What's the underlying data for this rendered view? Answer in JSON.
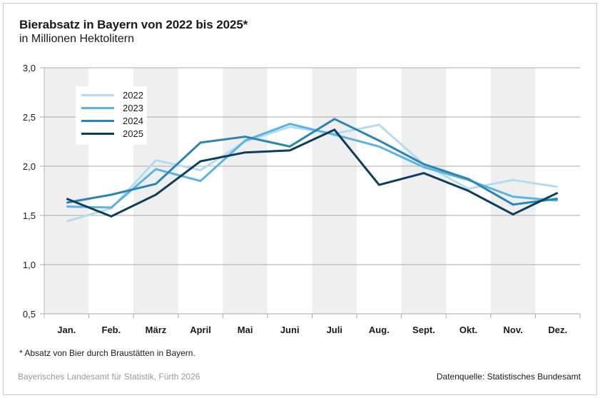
{
  "header": {
    "title": "Bierabsatz in Bayern von 2022 bis 2025*",
    "subtitle": "in Millionen Hektolitern"
  },
  "footer": {
    "footnote": "* Absatz von Bier durch Braustätten in Bayern.",
    "credit": "Bayerisches Landesamt für Statistik, Fürth 2026",
    "source": "Datenquelle: Statistisches Bundesamt"
  },
  "chart_data": {
    "type": "line",
    "title": "Bierabsatz in Bayern von 2022 bis 2025*",
    "subtitle": "in Millionen Hektolitern",
    "xlabel": "",
    "ylabel": "",
    "categories": [
      "Jan.",
      "Feb.",
      "März",
      "April",
      "Mai",
      "Juni",
      "Juli",
      "Aug.",
      "Sept.",
      "Okt.",
      "Nov.",
      "Dez."
    ],
    "ylim": [
      0.5,
      3.0
    ],
    "yticks": [
      0.5,
      1.0,
      1.5,
      2.0,
      2.5,
      3.0
    ],
    "ytick_labels": [
      "0,5",
      "1,0",
      "1,5",
      "2,0",
      "2,5",
      "3,0"
    ],
    "grid": "horizontal",
    "alternating_month_bands": true,
    "legend_position": "top-left",
    "series": [
      {
        "name": "2022",
        "color": "#b3dcf2",
        "values": [
          1.44,
          1.57,
          2.06,
          1.96,
          2.25,
          2.4,
          2.33,
          2.42,
          2.02,
          1.77,
          1.86,
          1.79
        ]
      },
      {
        "name": "2023",
        "color": "#5ab4e0",
        "values": [
          1.59,
          1.58,
          1.97,
          1.85,
          2.26,
          2.43,
          2.32,
          2.2,
          1.99,
          1.86,
          1.69,
          1.65
        ]
      },
      {
        "name": "2024",
        "color": "#2a85b3",
        "values": [
          1.63,
          1.71,
          1.82,
          2.24,
          2.3,
          2.2,
          2.48,
          2.26,
          2.02,
          1.87,
          1.61,
          1.67
        ]
      },
      {
        "name": "2025",
        "color": "#0c3e5e",
        "values": [
          1.67,
          1.49,
          1.71,
          2.05,
          2.14,
          2.16,
          2.37,
          1.81,
          1.93,
          1.75,
          1.51,
          1.73
        ]
      }
    ],
    "footnote": "* Absatz von Bier durch Braustätten in Bayern.",
    "source": "Datenquelle: Statistisches Bundesamt"
  }
}
